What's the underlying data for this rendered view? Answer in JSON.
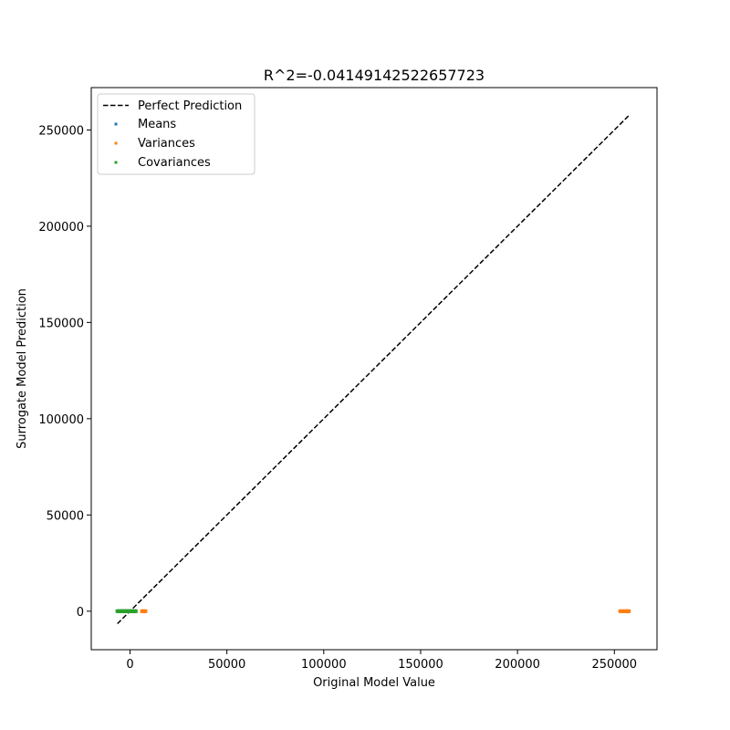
{
  "chart_data": {
    "type": "scatter",
    "title": "R^2=-0.04149142522657723",
    "xlabel": "Original Model Value",
    "ylabel": "Surrogate Model Prediction",
    "xlim": [
      -20000,
      272000
    ],
    "ylim": [
      -20000,
      272000
    ],
    "xticks": [
      0,
      50000,
      100000,
      150000,
      200000,
      250000
    ],
    "yticks": [
      0,
      50000,
      100000,
      150000,
      200000,
      250000
    ],
    "grid": false,
    "legend_position": "top-left",
    "reference_line": {
      "name": "Perfect Prediction",
      "from": [
        -6500,
        -6500
      ],
      "to": [
        257500,
        257500
      ],
      "style": "dashed",
      "color": "#000000"
    },
    "series": [
      {
        "name": "Means",
        "color": "#1f77b4",
        "points": [
          [
            -4000,
            0
          ],
          [
            -2500,
            0
          ],
          [
            -1000,
            0
          ],
          [
            500,
            0
          ],
          [
            1500,
            0
          ]
        ]
      },
      {
        "name": "Variances",
        "color": "#ff7f0e",
        "points": [
          [
            6200,
            0
          ],
          [
            6800,
            0
          ],
          [
            7400,
            0
          ],
          [
            8000,
            0
          ],
          [
            253000,
            0
          ],
          [
            254000,
            0
          ],
          [
            254800,
            0
          ],
          [
            255500,
            0
          ],
          [
            256200,
            0
          ],
          [
            256900,
            0
          ],
          [
            257500,
            0
          ]
        ]
      },
      {
        "name": "Covariances",
        "color": "#2ca02c",
        "points": [
          [
            -6500,
            0
          ],
          [
            -6000,
            0
          ],
          [
            -5500,
            0
          ],
          [
            -5000,
            0
          ],
          [
            -4500,
            0
          ],
          [
            -4000,
            0
          ],
          [
            -3500,
            0
          ],
          [
            -3000,
            0
          ],
          [
            -2500,
            0
          ],
          [
            -2000,
            0
          ],
          [
            -1500,
            0
          ],
          [
            -1000,
            0
          ],
          [
            -500,
            0
          ],
          [
            0,
            0
          ],
          [
            500,
            0
          ],
          [
            1000,
            0
          ],
          [
            1500,
            0
          ],
          [
            2000,
            0
          ],
          [
            2500,
            0
          ],
          [
            3000,
            0
          ]
        ]
      }
    ]
  }
}
